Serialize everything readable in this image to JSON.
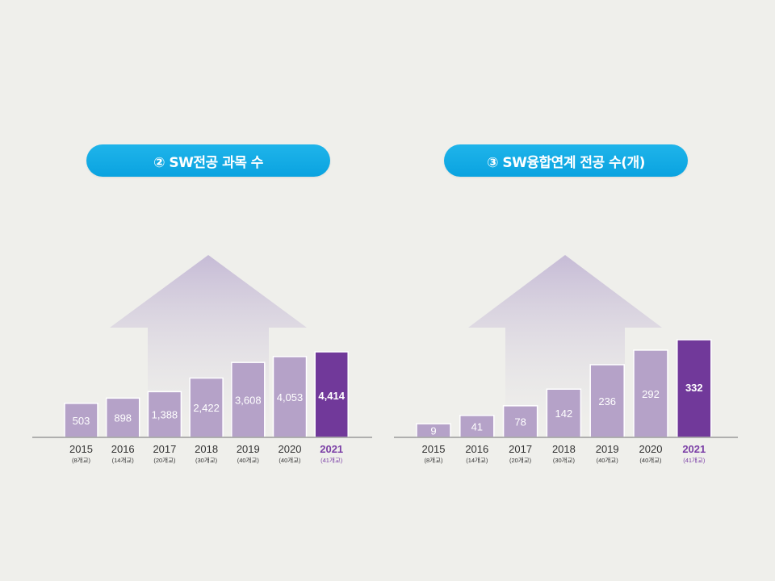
{
  "chart_data": [
    {
      "type": "bar",
      "title": "② SW전공 과목 수",
      "categories": [
        "2015",
        "2016",
        "2017",
        "2018",
        "2019",
        "2020",
        "2021"
      ],
      "sublabels": [
        "(8개교)",
        "(14개교)",
        "(20개교)",
        "(30개교)",
        "(40개교)",
        "(40개교)",
        "(41개교)"
      ],
      "values": [
        503,
        898,
        1388,
        2422,
        3608,
        4053,
        4414
      ],
      "value_labels": [
        "503",
        "898",
        "1,388",
        "2,422",
        "3,608",
        "4,053",
        "4,414"
      ],
      "highlight_index": 6
    },
    {
      "type": "bar",
      "title": "③ SW융합연계 전공 수(개)",
      "categories": [
        "2015",
        "2016",
        "2017",
        "2018",
        "2019",
        "2020",
        "2021"
      ],
      "sublabels": [
        "(8개교)",
        "(14개교)",
        "(20개교)",
        "(30개교)",
        "(40개교)",
        "(40개교)",
        "(41개교)"
      ],
      "values": [
        9,
        41,
        78,
        142,
        236,
        292,
        332
      ],
      "value_labels": [
        "9",
        "41",
        "78",
        "142",
        "236",
        "292",
        "332"
      ],
      "highlight_index": 6
    }
  ],
  "colors": {
    "bar": "#b5a2c8",
    "bar_highlight": "#71399a",
    "label_highlight": "#7b3fa6",
    "pill": "#0aa3e0",
    "arrow_top": "#c6bbd6",
    "axis": "#9a9a9a",
    "text": "#333333"
  }
}
